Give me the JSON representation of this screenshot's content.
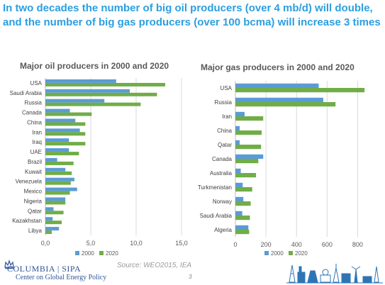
{
  "headline": "In two decades the number of big oil producers (over 4 mb/d) will double, and the number of big gas producers (over 100 bcma) will increase 3 times",
  "footer": {
    "logo_line1": "COLUMBIA | SIPA",
    "logo_line2": "Center on Global Energy Policy",
    "source": "Source: WEO2015, IEA",
    "page_number": "3"
  },
  "colors": {
    "series_2000": "#5b9bd5",
    "series_2020": "#70ad47",
    "headline": "#2b9fe0",
    "logo": "#2f5597"
  },
  "chart_data": [
    {
      "type": "bar",
      "orientation": "horizontal",
      "title": "Major oil producers in 2000 and 2020",
      "categories": [
        "USA",
        "Saudi Arabia",
        "Russia",
        "Canada",
        "China",
        "Iran",
        "Iraq",
        "UAE",
        "Brazil",
        "Kuwait",
        "Venezuela",
        "Mexico",
        "Nigeria",
        "Qatar",
        "Kazakhstan",
        "Libya"
      ],
      "series": [
        {
          "name": "2000",
          "values": [
            7.8,
            9.3,
            6.5,
            2.7,
            3.3,
            3.8,
            2.6,
            2.6,
            1.3,
            2.2,
            3.2,
            3.5,
            2.2,
            0.9,
            0.8,
            1.5
          ]
        },
        {
          "name": "2020",
          "values": [
            13.2,
            12.3,
            10.5,
            5.1,
            4.4,
            4.4,
            4.4,
            3.7,
            3.1,
            2.9,
            2.8,
            2.7,
            2.2,
            2.0,
            1.8,
            0.7
          ]
        }
      ],
      "xlim": [
        0,
        15
      ],
      "xticks": [
        "0,0",
        "5,0",
        "10,0",
        "15,0"
      ],
      "grid": true,
      "legend": "bottom"
    },
    {
      "type": "bar",
      "orientation": "horizontal",
      "title": "Major gas producers in 2000 and 2020",
      "categories": [
        "USA",
        "Russia",
        "Iran",
        "China",
        "Qatar",
        "Canada",
        "Australia",
        "Turkmenistan",
        "Norway",
        "Saudi Arabia",
        "Algeria"
      ],
      "series": [
        {
          "name": "2000",
          "values": [
            545,
            575,
            60,
            28,
            28,
            182,
            35,
            48,
            52,
            45,
            85
          ]
        },
        {
          "name": "2020",
          "values": [
            845,
            655,
            182,
            172,
            168,
            150,
            135,
            110,
            100,
            95,
            90
          ]
        }
      ],
      "xlim": [
        0,
        900
      ],
      "xticks": [
        "0",
        "200",
        "400",
        "600",
        "800"
      ],
      "grid": true,
      "legend": "bottom"
    }
  ]
}
